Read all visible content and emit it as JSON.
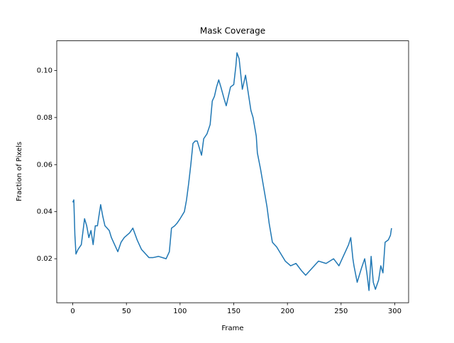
{
  "chart_data": {
    "type": "line",
    "title": "Mask Coverage",
    "x_label": "Frame",
    "y_label": "Fraction of Pixels",
    "x": [
      0,
      1,
      2,
      3,
      5,
      8,
      11,
      13,
      15,
      17,
      19,
      21,
      23,
      24,
      26,
      28,
      30,
      32,
      34,
      36,
      39,
      42,
      45,
      48,
      53,
      56,
      60,
      64,
      68,
      71,
      75,
      80,
      87,
      90,
      92,
      95,
      97,
      100,
      104,
      106,
      108,
      110,
      112,
      114,
      116,
      118,
      120,
      122,
      125,
      128,
      130,
      132,
      134,
      136,
      138,
      141,
      143,
      145,
      147,
      150,
      152,
      153,
      155,
      158,
      161,
      163,
      166,
      168,
      171,
      172,
      175,
      178,
      181,
      183,
      186,
      190,
      194,
      198,
      203,
      208,
      213,
      217,
      223,
      229,
      236,
      243,
      248,
      254,
      257,
      259,
      261,
      262,
      265,
      269,
      272,
      274,
      276,
      278,
      280,
      282,
      285,
      287,
      289,
      291,
      294,
      296,
      297
    ],
    "series": [
      {
        "name": "Mask Coverage",
        "color": "#1f77b4",
        "values": [
          0.044,
          0.045,
          0.03,
          0.022,
          0.024,
          0.026,
          0.037,
          0.034,
          0.029,
          0.032,
          0.026,
          0.034,
          0.034,
          0.037,
          0.043,
          0.038,
          0.034,
          0.033,
          0.032,
          0.029,
          0.026,
          0.023,
          0.027,
          0.029,
          0.031,
          0.033,
          0.028,
          0.024,
          0.022,
          0.0205,
          0.0205,
          0.021,
          0.02,
          0.023,
          0.033,
          0.034,
          0.035,
          0.037,
          0.04,
          0.045,
          0.052,
          0.06,
          0.069,
          0.07,
          0.07,
          0.067,
          0.064,
          0.071,
          0.073,
          0.077,
          0.087,
          0.089,
          0.093,
          0.096,
          0.093,
          0.088,
          0.085,
          0.089,
          0.093,
          0.094,
          0.102,
          0.1075,
          0.105,
          0.092,
          0.098,
          0.092,
          0.083,
          0.08,
          0.072,
          0.065,
          0.058,
          0.05,
          0.042,
          0.035,
          0.027,
          0.025,
          0.022,
          0.019,
          0.017,
          0.018,
          0.015,
          0.013,
          0.016,
          0.019,
          0.018,
          0.02,
          0.017,
          0.023,
          0.026,
          0.029,
          0.02,
          0.017,
          0.01,
          0.016,
          0.02,
          0.014,
          0.0065,
          0.021,
          0.01,
          0.007,
          0.011,
          0.017,
          0.014,
          0.027,
          0.028,
          0.03,
          0.033
        ]
      }
    ],
    "xlim": [
      -14.9,
      312.9
    ],
    "xticks": [
      0,
      50,
      100,
      150,
      200,
      250,
      300
    ],
    "ylim": [
      0.0013,
      0.1126
    ],
    "yticks": [
      {
        "value": 0.02,
        "label": "0.02"
      },
      {
        "value": 0.04,
        "label": "0.04"
      },
      {
        "value": 0.06,
        "label": "0.06"
      },
      {
        "value": 0.08,
        "label": "0.08"
      },
      {
        "value": 0.1,
        "label": "0.10"
      }
    ],
    "grid": false
  }
}
